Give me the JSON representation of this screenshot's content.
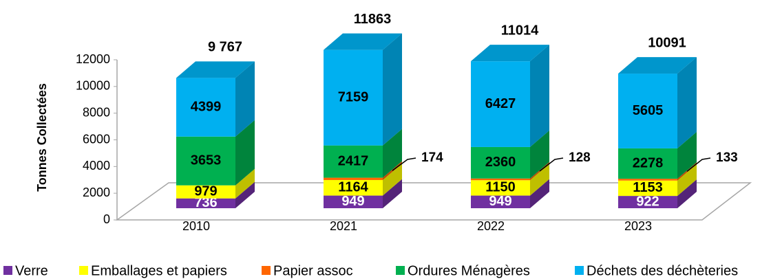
{
  "chart_data": {
    "type": "bar3d_stacked",
    "y_axis_label": "Tonnes Collectées",
    "categories": [
      "2010",
      "2021",
      "2022",
      "2023"
    ],
    "series": [
      {
        "name": "Verre",
        "color": "#7030a0",
        "values": [
          736,
          949,
          949,
          922
        ]
      },
      {
        "name": "Emballages et papiers",
        "color": "#ffff00",
        "values": [
          979,
          1164,
          1150,
          1153
        ]
      },
      {
        "name": "Papier assoc",
        "color": "#ff6600",
        "values": [
          null,
          174,
          128,
          133
        ]
      },
      {
        "name": "Ordures Ménagères",
        "color": "#00b050",
        "values": [
          3653,
          2417,
          2360,
          2278
        ]
      },
      {
        "name": "Déchets des déchèteries",
        "color": "#00b0f0",
        "values": [
          4399,
          7159,
          6427,
          5605
        ]
      }
    ],
    "totals": {
      "values": [
        9767,
        11863,
        11014,
        10091
      ],
      "value_labels": [
        "9 767",
        "11863",
        "11014",
        "10091"
      ]
    },
    "ylim": [
      0,
      12000
    ],
    "yticks": [
      0,
      2000,
      4000,
      6000,
      8000,
      10000,
      12000
    ]
  }
}
